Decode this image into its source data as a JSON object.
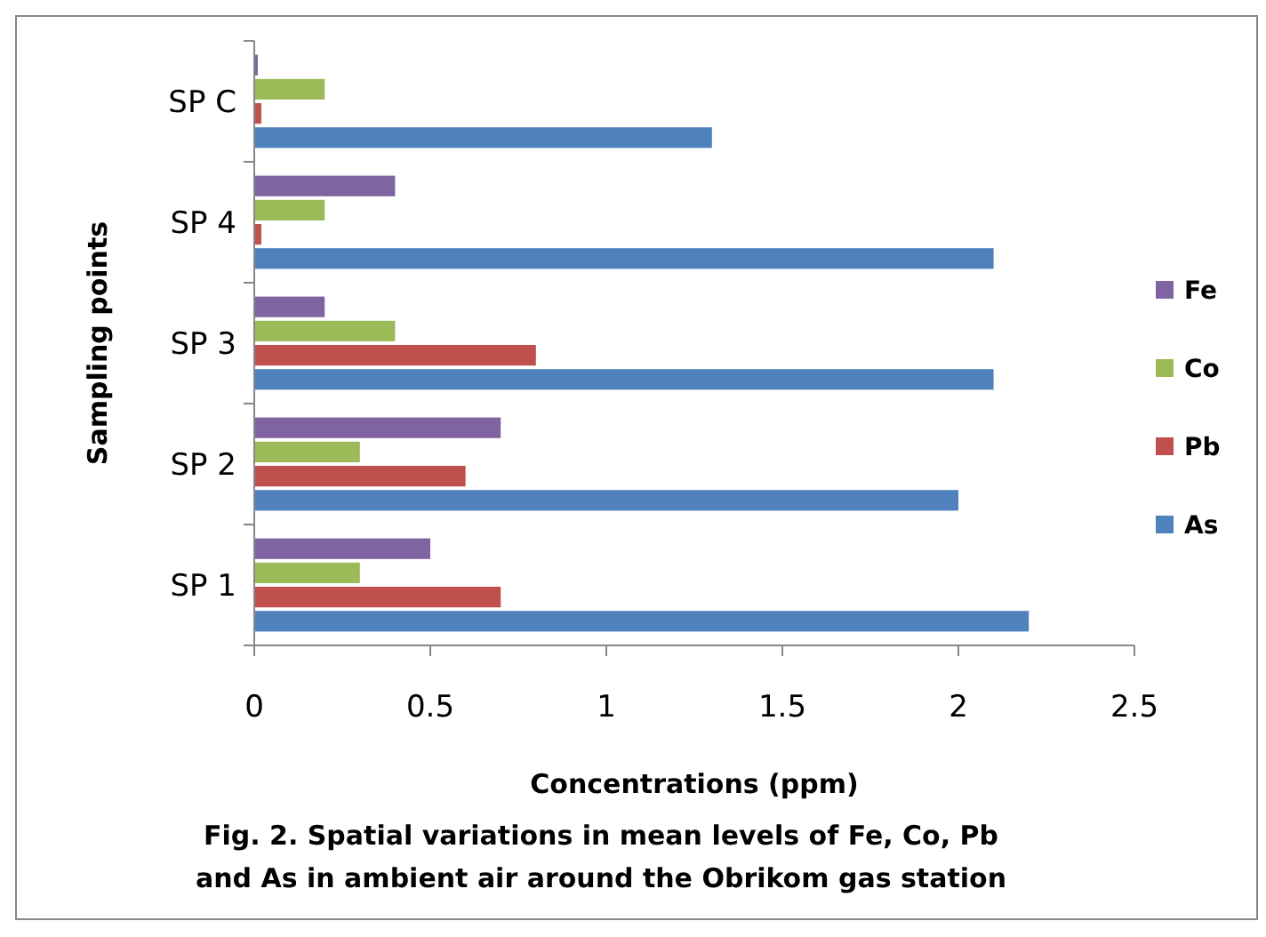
{
  "chart_data": {
    "type": "bar",
    "orientation": "horizontal",
    "xlabel": "Concentrations (ppm)",
    "ylabel": "Sampling points",
    "categories": [
      "SP C",
      "SP 4",
      "SP 3",
      "SP 2",
      "SP 1"
    ],
    "series": [
      {
        "name": "As",
        "color": "#4f81bd",
        "values": [
          1.3,
          2.1,
          2.1,
          2.0,
          2.2
        ]
      },
      {
        "name": "Pb",
        "color": "#c0504d",
        "values": [
          0.02,
          0.02,
          0.8,
          0.6,
          0.7
        ]
      },
      {
        "name": "Co",
        "color": "#9bbb59",
        "values": [
          0.2,
          0.2,
          0.4,
          0.3,
          0.3
        ]
      },
      {
        "name": "Fe",
        "color": "#8064a2",
        "values": [
          0.01,
          0.4,
          0.2,
          0.7,
          0.5
        ]
      }
    ],
    "xlim": [
      0,
      2.5
    ],
    "xticks": [
      0,
      0.5,
      1,
      1.5,
      2,
      2.5
    ],
    "grid": false,
    "legend": "right",
    "annotations": [
      "Fig. 2. Spatial variations in mean levels of Fe, Co, Pb",
      "and As in ambient air around the Obrikom gas station"
    ]
  }
}
